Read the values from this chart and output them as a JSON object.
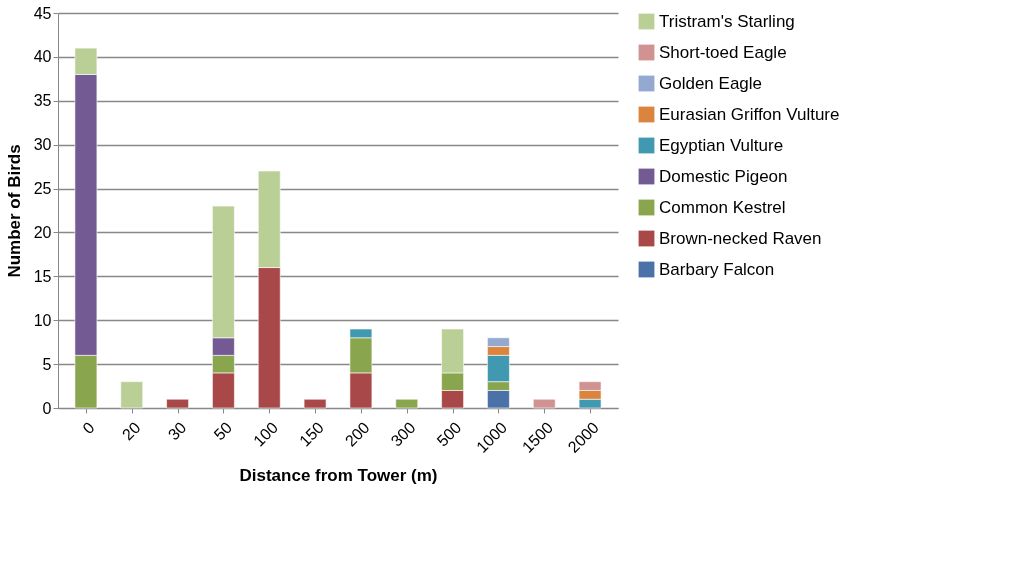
{
  "chart_data": {
    "type": "bar",
    "stacked": true,
    "xlabel": "Distance from Tower (m)",
    "ylabel": "Number of Birds",
    "categories": [
      "0",
      "20",
      "30",
      "50",
      "100",
      "150",
      "200",
      "300",
      "500",
      "1000",
      "1500",
      "2000"
    ],
    "series": [
      {
        "name": "Barbary Falcon",
        "color": "#4a72a8",
        "values": [
          null,
          null,
          null,
          null,
          null,
          null,
          null,
          null,
          null,
          2,
          null,
          null
        ]
      },
      {
        "name": "Brown-necked Raven",
        "color": "#a94848",
        "values": [
          null,
          null,
          1,
          4,
          16,
          1,
          4,
          null,
          2,
          null,
          null,
          null
        ]
      },
      {
        "name": "Common Kestrel",
        "color": "#89a54e",
        "values": [
          6,
          null,
          null,
          2,
          null,
          null,
          4,
          1,
          2,
          1,
          null,
          null
        ]
      },
      {
        "name": "Domestic Pigeon",
        "color": "#735a92",
        "values": [
          32,
          null,
          null,
          2,
          null,
          null,
          null,
          null,
          null,
          null,
          null,
          null
        ]
      },
      {
        "name": "Egyptian Vulture",
        "color": "#4099b0",
        "values": [
          null,
          null,
          null,
          null,
          null,
          null,
          1,
          null,
          null,
          3,
          null,
          1
        ]
      },
      {
        "name": "Eurasian Griffon Vulture",
        "color": "#db843d",
        "values": [
          null,
          null,
          null,
          null,
          null,
          null,
          null,
          null,
          null,
          1,
          null,
          1
        ]
      },
      {
        "name": "Golden Eagle",
        "color": "#93a9cf",
        "values": [
          null,
          null,
          null,
          null,
          null,
          null,
          null,
          null,
          null,
          1,
          null,
          null
        ]
      },
      {
        "name": "Short-toed Eagle",
        "color": "#d19392",
        "values": [
          null,
          null,
          null,
          null,
          null,
          null,
          null,
          null,
          null,
          null,
          1,
          1
        ]
      },
      {
        "name": "Tristram's Starling",
        "color": "#b9cf96",
        "values": [
          3,
          3,
          null,
          15,
          11,
          null,
          null,
          null,
          5,
          null,
          null,
          null
        ]
      }
    ],
    "ylim": [
      0,
      45
    ],
    "yticks": [
      0,
      5,
      10,
      15,
      20,
      25,
      30,
      35,
      40,
      45
    ],
    "grid": "y",
    "legend": "right"
  }
}
